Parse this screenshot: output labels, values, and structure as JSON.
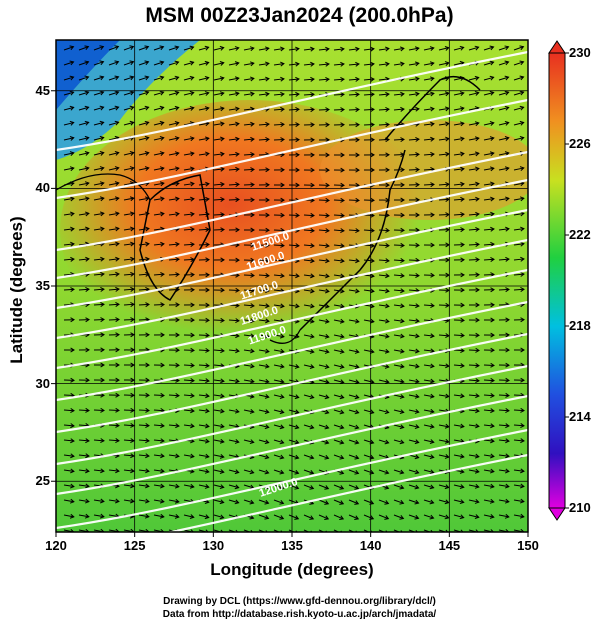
{
  "title": "MSM 00Z23Jan2024 (200.0hPa)",
  "xlabel": "Longitude (degrees)",
  "ylabel": "Latitude  (degrees)",
  "x_ticks": [
    "120",
    "125",
    "130",
    "135",
    "140",
    "145",
    "150"
  ],
  "y_ticks": [
    "25",
    "30",
    "35",
    "40",
    "45"
  ],
  "colorbar_ticks": [
    "230",
    "226",
    "222",
    "218",
    "214",
    "210"
  ],
  "contour_labels": [
    "11500.0",
    "11600.0",
    "11700.0",
    "11800.0",
    "11900.0",
    "12000.0"
  ],
  "credits": {
    "line1": "Drawing by DCL (https://www.gfd-dennou.org/library/dcl/)",
    "line2": "Data from http://database.rish.kyoto-u.ac.jp/arch/jmadata/"
  },
  "chart_data": {
    "type": "heatmap",
    "title": "MSM 00Z23Jan2024 (200.0hPa)",
    "xlabel": "Longitude (degrees)",
    "ylabel": "Latitude  (degrees)",
    "xlim": [
      120,
      150
    ],
    "ylim": [
      22.4,
      47.6
    ],
    "x_ticks": [
      120,
      125,
      130,
      135,
      140,
      145,
      150
    ],
    "y_ticks": [
      25,
      30,
      35,
      40,
      45
    ],
    "colorbar": {
      "range": [
        210,
        230
      ],
      "ticks": [
        210,
        214,
        218,
        222,
        226,
        230
      ],
      "colors": [
        "#e000e0",
        "#2020d0",
        "#00c0e0",
        "#20d040",
        "#d0e020",
        "#f08020",
        "#e83020"
      ]
    },
    "contours": [
      {
        "label": "11500.0",
        "lon": 132.5,
        "lat": 36.8
      },
      {
        "label": "11600.0",
        "lon": 132.2,
        "lat": 35.8
      },
      {
        "label": "11700.0",
        "lon": 131.8,
        "lat": 34.3
      },
      {
        "label": "11800.0",
        "lon": 131.8,
        "lat": 33.0
      },
      {
        "label": "11900.0",
        "lon": 132.3,
        "lat": 32.0
      },
      {
        "label": "12000.0",
        "lon": 133.0,
        "lat": 24.2
      }
    ],
    "grid": true,
    "overlays": [
      "coastlines",
      "wind vectors",
      "geopotential height contours"
    ]
  }
}
